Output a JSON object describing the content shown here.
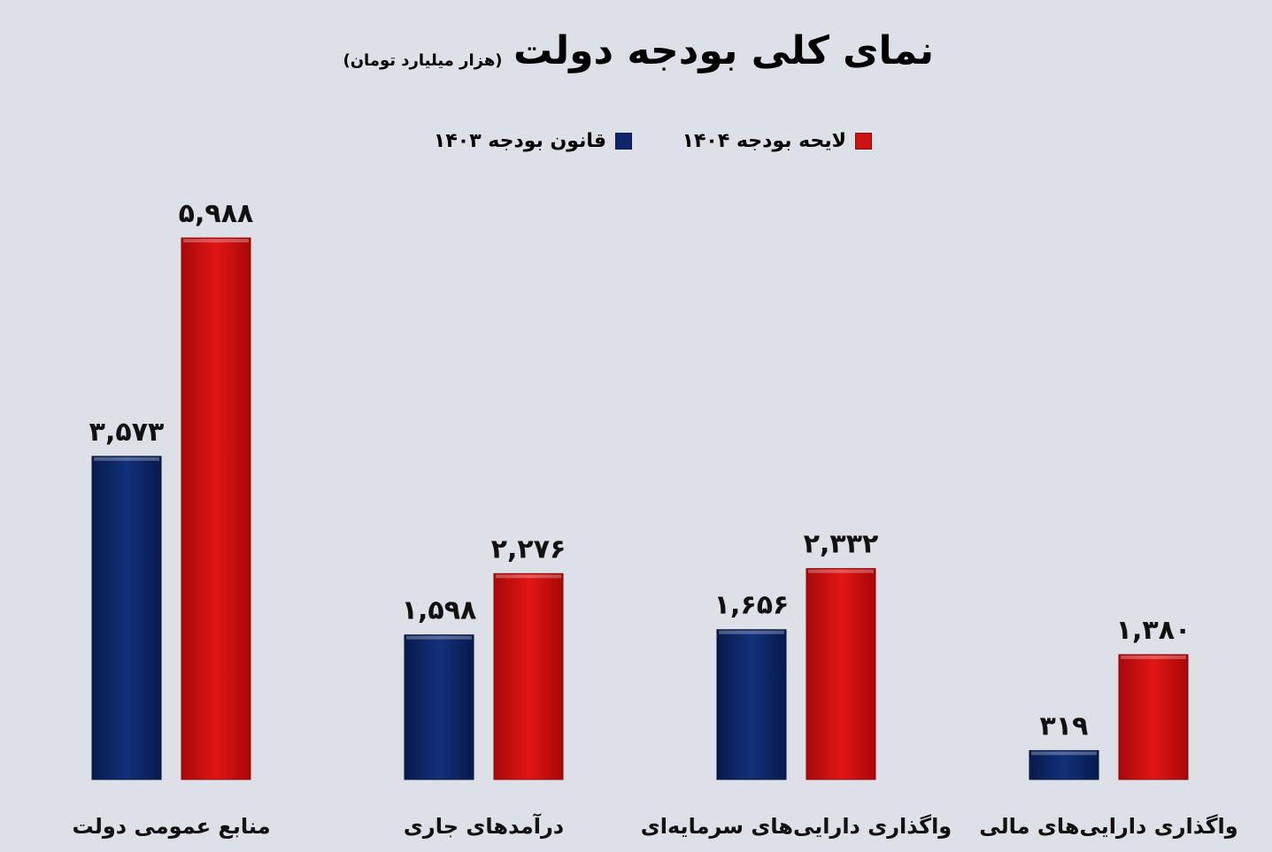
{
  "title": "نمای کلی بودجه دولت",
  "subtitle": "(هزار میلیارد تومان)",
  "legend": [
    {
      "label": "لایحه بودجه ۱۴۰۴",
      "color": "#cf1111"
    },
    {
      "label": "قانون بودجه ۱۴۰۳",
      "color": "#0e2568"
    }
  ],
  "chart_data": {
    "type": "bar",
    "categories": [
      "منابع عمومی دولت",
      "درآمدهای جاری",
      "واگذاری دارایی‌های سرمایه‌ای",
      "واگذاری دارایی‌های مالی"
    ],
    "series": [
      {
        "name": "قانون بودجه ۱۴۰۳",
        "values": [
          3573,
          1598,
          1656,
          319
        ],
        "labels": [
          "۳,۵۷۳",
          "۱,۵۹۸",
          "۱,۶۵۶",
          "۳۱۹"
        ],
        "color": "#0e2568"
      },
      {
        "name": "لایحه بودجه ۱۴۰۴",
        "values": [
          5988,
          2276,
          2332,
          1380
        ],
        "labels": [
          "۵,۹۸۸",
          "۲,۲۷۶",
          "۲,۳۳۲",
          "۱,۳۸۰"
        ],
        "color": "#cf1111"
      }
    ],
    "ylim": [
      0,
      7000
    ],
    "grid": false,
    "axes_visible": false,
    "legend_position": "top"
  }
}
